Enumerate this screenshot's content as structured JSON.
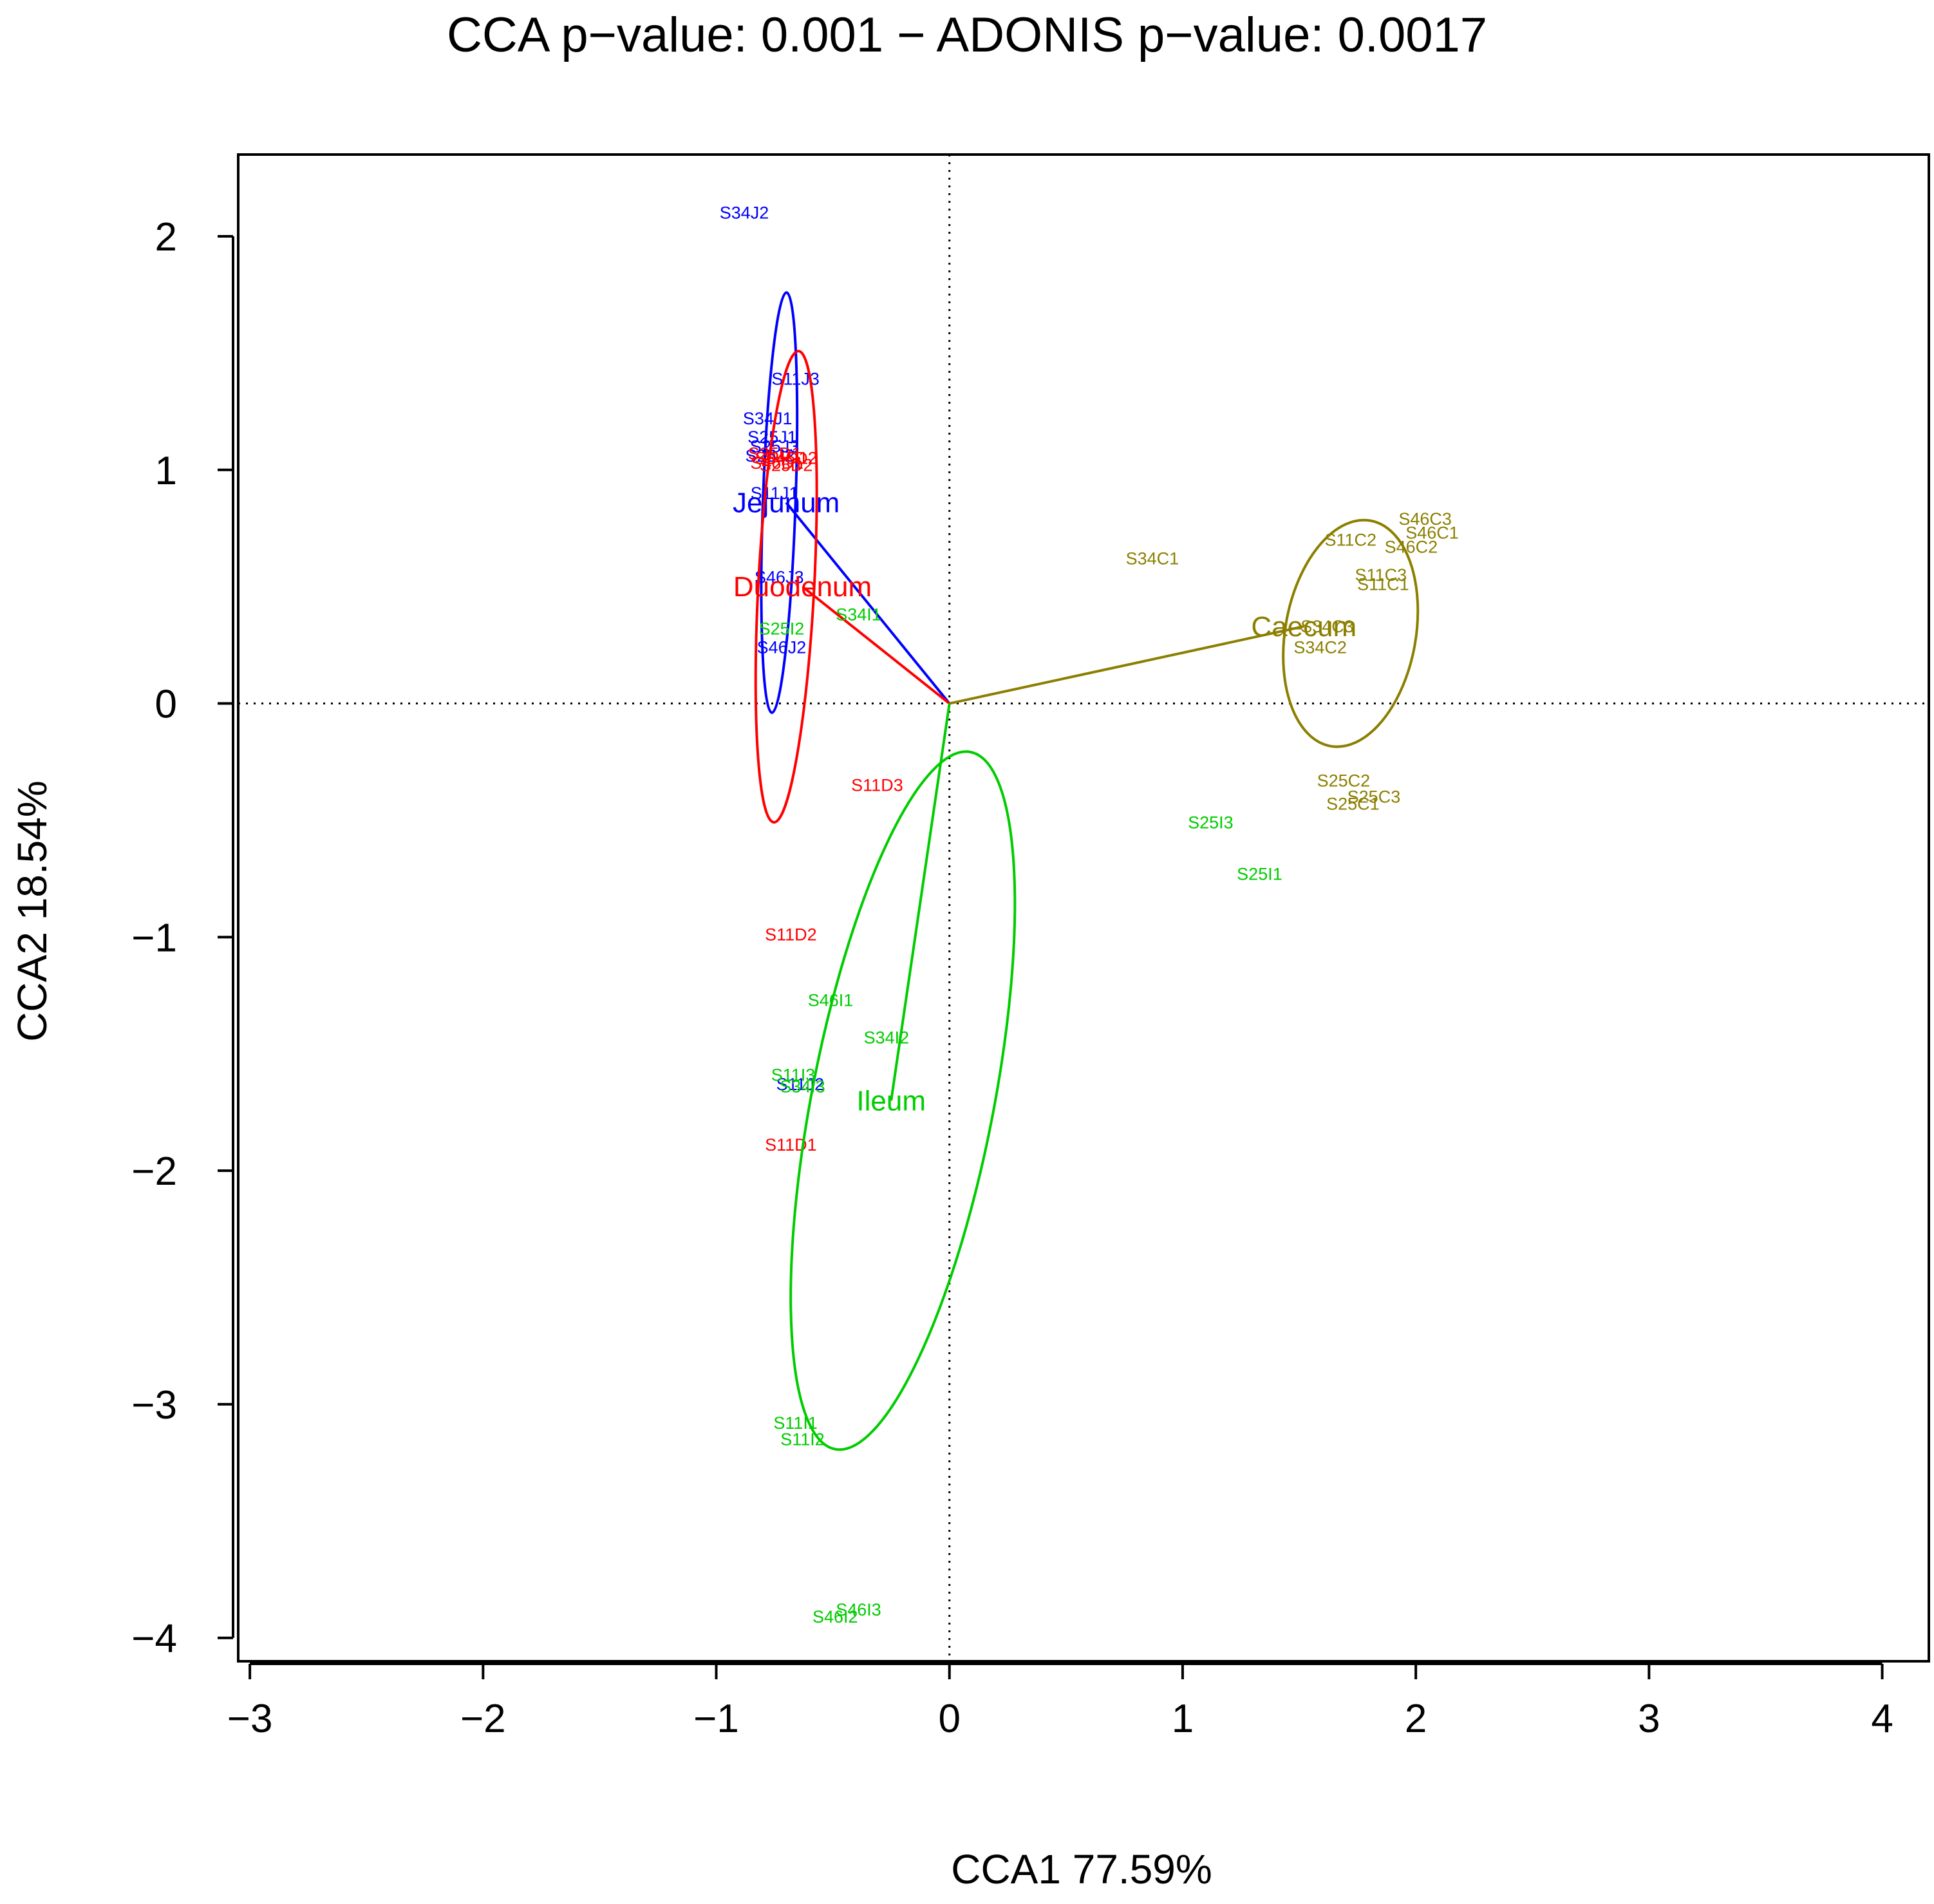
{
  "chart_data": {
    "type": "scatter",
    "title": "CCA p−value: 0.001 − ADONIS p−value: 0.0017",
    "xlabel": "CCA1 77.59%",
    "ylabel": "CCA2 18.54%",
    "xlim": [
      -3.05,
      4.2
    ],
    "ylim": [
      -4.1,
      2.35
    ],
    "xticks": [
      -3,
      -2,
      -1,
      0,
      1,
      2,
      3,
      4
    ],
    "yticks": [
      -4,
      -3,
      -2,
      -1,
      0,
      1,
      2
    ],
    "xtick_labels": [
      "−3",
      "−2",
      "−1",
      "0",
      "1",
      "2",
      "3",
      "4"
    ],
    "ytick_labels": [
      "−4",
      "−3",
      "−2",
      "−1",
      "0",
      "1",
      "2"
    ],
    "reference_lines": {
      "x": 0,
      "y": 0,
      "style": "dotted"
    },
    "groups": [
      {
        "name": "Jejunum",
        "color": "#0000ff",
        "centroid": [
          -0.7,
          0.86
        ],
        "ellipse": {
          "center": [
            -0.73,
            0.86
          ],
          "rx": 0.07,
          "ry": 0.9,
          "angle_deg": 2
        },
        "points": [
          {
            "label": "S34J2",
            "x": -0.88,
            "y": 2.1
          },
          {
            "label": "S11J3",
            "x": -0.66,
            "y": 1.39
          },
          {
            "label": "S34J1",
            "x": -0.78,
            "y": 1.22
          },
          {
            "label": "S25J1",
            "x": -0.76,
            "y": 1.14
          },
          {
            "label": "S25J3",
            "x": -0.75,
            "y": 1.1
          },
          {
            "label": "S25J2",
            "x": -0.77,
            "y": 1.06
          },
          {
            "label": "S11J1",
            "x": -0.75,
            "y": 0.9
          },
          {
            "label": "S46J3",
            "x": -0.73,
            "y": 0.54
          },
          {
            "label": "S46J2",
            "x": -0.72,
            "y": 0.24
          },
          {
            "label": "S11J2",
            "x": -0.64,
            "y": -1.63
          }
        ]
      },
      {
        "name": "Duodenum",
        "color": "#ff0000",
        "centroid": [
          -0.63,
          0.5
        ],
        "ellipse": {
          "center": [
            -0.7,
            0.5
          ],
          "rx": 0.12,
          "ry": 1.01,
          "angle_deg": 3
        },
        "points": [
          {
            "label": "S25D1",
            "x": -0.75,
            "y": 1.07
          },
          {
            "label": "S34D1",
            "x": -0.72,
            "y": 1.05
          },
          {
            "label": "S46D1",
            "x": -0.74,
            "y": 1.03
          },
          {
            "label": "S25D2",
            "x": -0.7,
            "y": 1.02
          },
          {
            "label": "S46D2",
            "x": -0.68,
            "y": 1.05
          },
          {
            "label": "S11D3",
            "x": -0.31,
            "y": -0.35
          },
          {
            "label": "S11D2",
            "x": -0.68,
            "y": -0.99
          },
          {
            "label": "S11D1",
            "x": -0.68,
            "y": -1.89
          }
        ]
      },
      {
        "name": "Caecum",
        "color": "#8b7f00",
        "centroid": [
          1.52,
          0.33
        ],
        "ellipse": {
          "center": [
            1.72,
            0.3
          ],
          "rx": 0.28,
          "ry": 0.49,
          "angle_deg": 10
        },
        "points": [
          {
            "label": "S46C3",
            "x": 2.04,
            "y": 0.79
          },
          {
            "label": "S46C1",
            "x": 2.07,
            "y": 0.73
          },
          {
            "label": "S11C2",
            "x": 1.72,
            "y": 0.7
          },
          {
            "label": "S46C2",
            "x": 1.98,
            "y": 0.67
          },
          {
            "label": "S34C1",
            "x": 0.87,
            "y": 0.62
          },
          {
            "label": "S11C3",
            "x": 1.85,
            "y": 0.55
          },
          {
            "label": "S11C1",
            "x": 1.86,
            "y": 0.51
          },
          {
            "label": "S34C3",
            "x": 1.62,
            "y": 0.33
          },
          {
            "label": "S34C2",
            "x": 1.59,
            "y": 0.24
          },
          {
            "label": "S25C2",
            "x": 1.69,
            "y": -0.33
          },
          {
            "label": "S25C3",
            "x": 1.82,
            "y": -0.4
          },
          {
            "label": "S25C1",
            "x": 1.73,
            "y": -0.43
          }
        ]
      },
      {
        "name": "Ileum",
        "color": "#00cc00",
        "centroid": [
          -0.25,
          -1.7
        ],
        "ellipse": {
          "center": [
            -0.2,
            -1.7
          ],
          "rx": 0.39,
          "ry": 1.52,
          "angle_deg": 11
        },
        "points": [
          {
            "label": "S34I1",
            "x": -0.39,
            "y": 0.38
          },
          {
            "label": "S25I2",
            "x": -0.72,
            "y": 0.32
          },
          {
            "label": "S25I3",
            "x": 1.12,
            "y": -0.51
          },
          {
            "label": "S25I1",
            "x": 1.33,
            "y": -0.73
          },
          {
            "label": "S46I1",
            "x": -0.51,
            "y": -1.27
          },
          {
            "label": "S34I2",
            "x": -0.27,
            "y": -1.43
          },
          {
            "label": "S11I3",
            "x": -0.67,
            "y": -1.59
          },
          {
            "label": "S34I3",
            "x": -0.63,
            "y": -1.64
          },
          {
            "label": "S11I1",
            "x": -0.66,
            "y": -3.08
          },
          {
            "label": "S11I2",
            "x": -0.63,
            "y": -3.15
          },
          {
            "label": "S46I3",
            "x": -0.39,
            "y": -3.88
          },
          {
            "label": "S46I2",
            "x": -0.49,
            "y": -3.91
          }
        ]
      }
    ]
  }
}
